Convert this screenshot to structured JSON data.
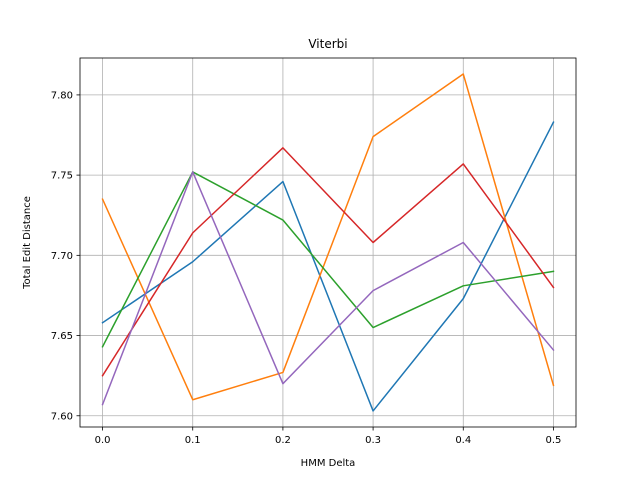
{
  "chart_data": {
    "type": "line",
    "title": "Viterbi",
    "xlabel": "HMM Delta",
    "ylabel": "Total Edit Distance",
    "x": [
      0.0,
      0.1,
      0.2,
      0.3,
      0.4,
      0.5
    ],
    "x_tick_labels": [
      "0.0",
      "0.1",
      "0.2",
      "0.3",
      "0.4",
      "0.5"
    ],
    "y_ticks": [
      7.6,
      7.65,
      7.7,
      7.75,
      7.8
    ],
    "y_tick_labels": [
      "7.60",
      "7.65",
      "7.70",
      "7.75",
      "7.80"
    ],
    "xlim": [
      -0.025,
      0.525
    ],
    "ylim": [
      7.593,
      7.823
    ],
    "grid": true,
    "series": [
      {
        "color": "#1f77b4",
        "values": [
          7.658,
          7.696,
          7.746,
          7.603,
          7.673,
          7.783
        ]
      },
      {
        "color": "#ff7f0e",
        "values": [
          7.735,
          7.61,
          7.627,
          7.774,
          7.813,
          7.619
        ]
      },
      {
        "color": "#2ca02c",
        "values": [
          7.643,
          7.752,
          7.722,
          7.655,
          7.681,
          7.69
        ]
      },
      {
        "color": "#d62728",
        "values": [
          7.625,
          7.714,
          7.767,
          7.708,
          7.757,
          7.68
        ]
      },
      {
        "color": "#9467bd",
        "values": [
          7.607,
          7.752,
          7.62,
          7.678,
          7.708,
          7.641
        ]
      }
    ]
  }
}
